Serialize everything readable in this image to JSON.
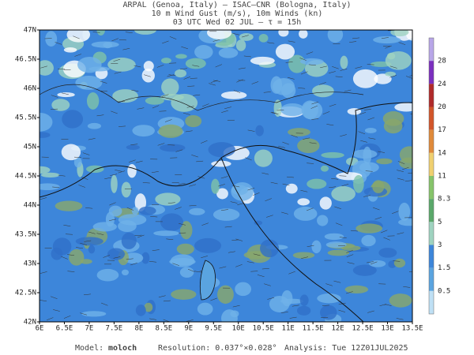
{
  "header": {
    "line1": "ARPAL (Genoa, Italy)  –  ISAC–CNR (Bologna, Italy)",
    "line2": "10 m Wind Gust (m/s), 10m Winds (kn)",
    "line3": "03 UTC Wed 02 JUL  –  τ = 15h"
  },
  "map": {
    "lat_labels": [
      "47N",
      "46.5N",
      "46N",
      "45.5N",
      "45N",
      "44.5N",
      "44N",
      "43.5N",
      "43N",
      "42.5N",
      "42N"
    ],
    "lon_labels": [
      "6E",
      "6.5E",
      "7E",
      "7.5E",
      "8E",
      "8.5E",
      "9E",
      "9.5E",
      "10E",
      "10.5E",
      "11E",
      "11.5E",
      "12E",
      "12.5E",
      "13E",
      "13.5E"
    ]
  },
  "colorbar": {
    "labels": [
      "28",
      "24",
      "20",
      "17",
      "14",
      "11",
      "8.3",
      "5",
      "3",
      "1.5",
      "0.5"
    ]
  },
  "footer": {
    "model_label": "Model:",
    "model": "moloch",
    "resolution": "Resolution: 0.037°×0.028°",
    "analysis": "Analysis: Tue 12Z01JUL2025"
  }
}
